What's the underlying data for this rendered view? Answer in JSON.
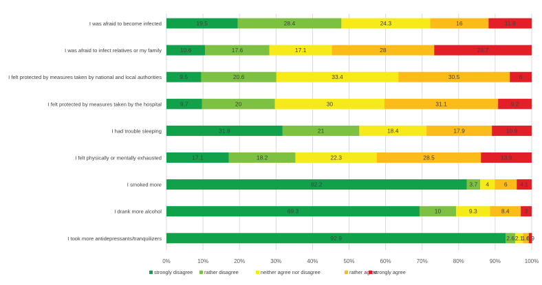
{
  "chart_data": {
    "type": "bar",
    "orientation": "horizontal",
    "stacked": true,
    "percent": true,
    "categories": [
      "I was afraid to become infected",
      "I was afraid to infect relatives or my family",
      "I felt protected by measures taken by national and local authorities",
      "I felt protected by measures taken by the hospital",
      "I had trouble sleeping",
      "I felt physically or mentally exhausted",
      "I smoked more",
      "I drank more alcohol",
      "I took more antidepressants/tranquilizers"
    ],
    "series": [
      {
        "name": "strongly disagree",
        "color": "#12a14b",
        "values": [
          19.5,
          10.6,
          9.5,
          9.7,
          31.8,
          17.1,
          82.2,
          69.3,
          92.9
        ]
      },
      {
        "name": "rather disagree",
        "color": "#7cc142",
        "values": [
          28.4,
          17.6,
          20.6,
          20,
          21,
          18.2,
          3.7,
          10,
          2.6
        ]
      },
      {
        "name": "neither agree nor disagree",
        "color": "#f6ea1b",
        "values": [
          24.3,
          17.1,
          33.4,
          30,
          18.4,
          22.3,
          4,
          9.3,
          2.1
        ]
      },
      {
        "name": "rather agree",
        "color": "#fbbb18",
        "values": [
          16,
          28,
          30.5,
          31.1,
          17.9,
          28.5,
          6,
          8.4,
          1.6
        ]
      },
      {
        "name": "strongly agree",
        "color": "#e21f26",
        "values": [
          11.8,
          26.7,
          6,
          9.2,
          10.9,
          13.9,
          4.1,
          3,
          0.9
        ]
      }
    ],
    "value_labels": [
      [
        "19.5",
        "28.4",
        "24.3",
        "16",
        "11.8"
      ],
      [
        "10.6",
        "17.6",
        "17.1",
        "28",
        "26.7"
      ],
      [
        "9.5",
        "20.6",
        "33.4",
        "30.5",
        "6"
      ],
      [
        "9.7",
        "20",
        "30",
        "31.1",
        "9.2"
      ],
      [
        "31.8",
        "21",
        "18.4",
        "17.9",
        "10.9"
      ],
      [
        "17.1",
        "18.2",
        "22.3",
        "28.5",
        "13.9"
      ],
      [
        "82.2",
        "3.7",
        "4",
        "6",
        "4.1"
      ],
      [
        "69.3",
        "10",
        "9.3",
        "8.4",
        "3"
      ],
      [
        "92.9",
        "2.6",
        "2.1",
        "1.6",
        "0.9"
      ]
    ],
    "x_ticks": [
      "0%",
      "10%",
      "20%",
      "30%",
      "40%",
      "50%",
      "60%",
      "70%",
      "80%",
      "90%",
      "100%"
    ],
    "xlim": [
      0,
      100
    ],
    "grid": true,
    "legend_position": "bottom",
    "title": "",
    "xlabel": "",
    "ylabel": ""
  }
}
